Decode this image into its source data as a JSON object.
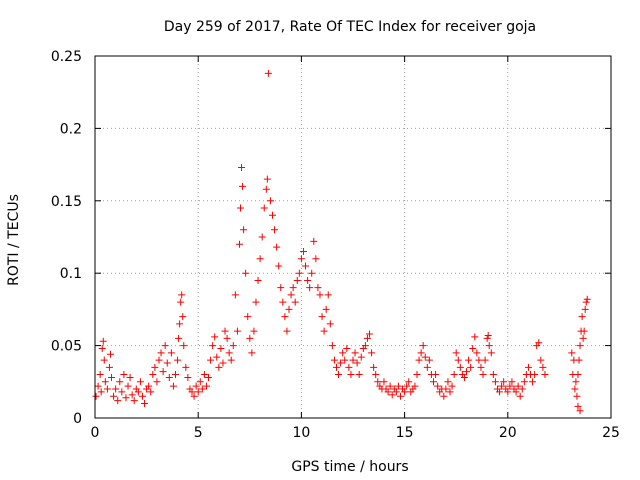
{
  "chart_data": {
    "type": "scatter",
    "title": "Day 259 of 2017, Rate Of TEC Index for receiver goja",
    "xlabel": "GPS time / hours",
    "ylabel": "ROTI / TECUs",
    "xlim": [
      0,
      25
    ],
    "ylim": [
      0,
      0.25
    ],
    "grid": true,
    "marker": "+",
    "color": "#ff0000",
    "x_ticks": [
      {
        "value": 0,
        "label": "0"
      },
      {
        "value": 5,
        "label": "5"
      },
      {
        "value": 10,
        "label": "10"
      },
      {
        "value": 15,
        "label": "15"
      },
      {
        "value": 20,
        "label": "20"
      },
      {
        "value": 25,
        "label": "25"
      }
    ],
    "y_ticks": [
      {
        "value": 0,
        "label": "0"
      },
      {
        "value": 0.05,
        "label": "0.05"
      },
      {
        "value": 0.1,
        "label": "0.1"
      },
      {
        "value": 0.15,
        "label": "0.15"
      },
      {
        "value": 0.2,
        "label": "0.2"
      },
      {
        "value": 0.25,
        "label": "0.25"
      }
    ],
    "series": [
      {
        "name": "ROTI",
        "points": [
          [
            0.05,
            0.015
          ],
          [
            0.15,
            0.022
          ],
          [
            0.25,
            0.03
          ],
          [
            0.3,
            0.018
          ],
          [
            0.35,
            0.048
          ],
          [
            0.4,
            0.053
          ],
          [
            0.45,
            0.04
          ],
          [
            0.5,
            0.025
          ],
          [
            0.6,
            0.02
          ],
          [
            0.7,
            0.035
          ],
          [
            0.75,
            0.044
          ],
          [
            0.8,
            0.028
          ],
          [
            0.9,
            0.015
          ],
          [
            1.0,
            0.02
          ],
          [
            1.1,
            0.012
          ],
          [
            1.2,
            0.025
          ],
          [
            1.3,
            0.018
          ],
          [
            1.4,
            0.03
          ],
          [
            1.5,
            0.014
          ],
          [
            1.6,
            0.022
          ],
          [
            1.7,
            0.028
          ],
          [
            1.8,
            0.016
          ],
          [
            1.9,
            0.012
          ],
          [
            2.0,
            0.02
          ],
          [
            2.1,
            0.018
          ],
          [
            2.2,
            0.025
          ],
          [
            2.3,
            0.015
          ],
          [
            2.4,
            0.01
          ],
          [
            2.5,
            0.02
          ],
          [
            2.6,
            0.022
          ],
          [
            2.7,
            0.018
          ],
          [
            2.8,
            0.03
          ],
          [
            2.9,
            0.035
          ],
          [
            3.0,
            0.025
          ],
          [
            3.1,
            0.04
          ],
          [
            3.2,
            0.045
          ],
          [
            3.3,
            0.032
          ],
          [
            3.4,
            0.05
          ],
          [
            3.5,
            0.038
          ],
          [
            3.6,
            0.028
          ],
          [
            3.7,
            0.045
          ],
          [
            3.8,
            0.022
          ],
          [
            3.9,
            0.03
          ],
          [
            4.0,
            0.04
          ],
          [
            4.05,
            0.055
          ],
          [
            4.1,
            0.065
          ],
          [
            4.15,
            0.08
          ],
          [
            4.2,
            0.085
          ],
          [
            4.25,
            0.07
          ],
          [
            4.3,
            0.05
          ],
          [
            4.4,
            0.035
          ],
          [
            4.5,
            0.028
          ],
          [
            4.6,
            0.02
          ],
          [
            4.7,
            0.018
          ],
          [
            4.8,
            0.015
          ],
          [
            4.9,
            0.022
          ],
          [
            5.0,
            0.018
          ],
          [
            5.1,
            0.025
          ],
          [
            5.2,
            0.02
          ],
          [
            5.3,
            0.03
          ],
          [
            5.4,
            0.022
          ],
          [
            5.5,
            0.028
          ],
          [
            5.6,
            0.04
          ],
          [
            5.7,
            0.05
          ],
          [
            5.8,
            0.056
          ],
          [
            5.9,
            0.042
          ],
          [
            6.0,
            0.035
          ],
          [
            6.1,
            0.048
          ],
          [
            6.2,
            0.038
          ],
          [
            6.3,
            0.06
          ],
          [
            6.4,
            0.055
          ],
          [
            6.5,
            0.045
          ],
          [
            6.6,
            0.04
          ],
          [
            6.7,
            0.05
          ],
          [
            6.8,
            0.085
          ],
          [
            6.9,
            0.06
          ],
          [
            7.0,
            0.12
          ],
          [
            7.05,
            0.145
          ],
          [
            7.1,
            0.173
          ],
          [
            7.15,
            0.16
          ],
          [
            7.2,
            0.13
          ],
          [
            7.3,
            0.1
          ],
          [
            7.4,
            0.07
          ],
          [
            7.5,
            0.055
          ],
          [
            7.6,
            0.045
          ],
          [
            7.7,
            0.06
          ],
          [
            7.8,
            0.08
          ],
          [
            7.9,
            0.095
          ],
          [
            8.0,
            0.11
          ],
          [
            8.1,
            0.125
          ],
          [
            8.2,
            0.145
          ],
          [
            8.3,
            0.158
          ],
          [
            8.35,
            0.165
          ],
          [
            8.4,
            0.238
          ],
          [
            8.5,
            0.15
          ],
          [
            8.6,
            0.14
          ],
          [
            8.7,
            0.13
          ],
          [
            8.8,
            0.118
          ],
          [
            8.9,
            0.105
          ],
          [
            9.0,
            0.09
          ],
          [
            9.1,
            0.08
          ],
          [
            9.2,
            0.07
          ],
          [
            9.3,
            0.06
          ],
          [
            9.4,
            0.075
          ],
          [
            9.5,
            0.085
          ],
          [
            9.6,
            0.09
          ],
          [
            9.7,
            0.08
          ],
          [
            9.8,
            0.095
          ],
          [
            9.9,
            0.1
          ],
          [
            10.0,
            0.11
          ],
          [
            10.1,
            0.115
          ],
          [
            10.2,
            0.105
          ],
          [
            10.3,
            0.095
          ],
          [
            10.4,
            0.09
          ],
          [
            10.5,
            0.1
          ],
          [
            10.6,
            0.122
          ],
          [
            10.7,
            0.11
          ],
          [
            10.8,
            0.09
          ],
          [
            10.9,
            0.085
          ],
          [
            11.0,
            0.07
          ],
          [
            11.1,
            0.06
          ],
          [
            11.2,
            0.075
          ],
          [
            11.3,
            0.085
          ],
          [
            11.4,
            0.065
          ],
          [
            11.5,
            0.05
          ],
          [
            11.6,
            0.04
          ],
          [
            11.7,
            0.035
          ],
          [
            11.8,
            0.03
          ],
          [
            11.9,
            0.038
          ],
          [
            12.0,
            0.045
          ],
          [
            12.1,
            0.04
          ],
          [
            12.2,
            0.048
          ],
          [
            12.3,
            0.035
          ],
          [
            12.4,
            0.03
          ],
          [
            12.5,
            0.04
          ],
          [
            12.6,
            0.045
          ],
          [
            12.7,
            0.038
          ],
          [
            12.8,
            0.03
          ],
          [
            12.9,
            0.042
          ],
          [
            13.0,
            0.048
          ],
          [
            13.1,
            0.05
          ],
          [
            13.2,
            0.055
          ],
          [
            13.3,
            0.058
          ],
          [
            13.4,
            0.045
          ],
          [
            13.5,
            0.035
          ],
          [
            13.6,
            0.03
          ],
          [
            13.7,
            0.025
          ],
          [
            13.8,
            0.022
          ],
          [
            13.9,
            0.02
          ],
          [
            14.0,
            0.025
          ],
          [
            14.1,
            0.02
          ],
          [
            14.2,
            0.018
          ],
          [
            14.3,
            0.022
          ],
          [
            14.4,
            0.016
          ],
          [
            14.5,
            0.02
          ],
          [
            14.6,
            0.018
          ],
          [
            14.7,
            0.022
          ],
          [
            14.8,
            0.015
          ],
          [
            14.9,
            0.02
          ],
          [
            15.0,
            0.018
          ],
          [
            15.1,
            0.022
          ],
          [
            15.2,
            0.025
          ],
          [
            15.3,
            0.018
          ],
          [
            15.4,
            0.02
          ],
          [
            15.5,
            0.022
          ],
          [
            15.6,
            0.03
          ],
          [
            15.7,
            0.04
          ],
          [
            15.8,
            0.045
          ],
          [
            15.9,
            0.05
          ],
          [
            16.0,
            0.042
          ],
          [
            16.1,
            0.035
          ],
          [
            16.2,
            0.04
          ],
          [
            16.3,
            0.03
          ],
          [
            16.4,
            0.025
          ],
          [
            16.5,
            0.03
          ],
          [
            16.6,
            0.022
          ],
          [
            16.7,
            0.018
          ],
          [
            16.8,
            0.02
          ],
          [
            16.9,
            0.015
          ],
          [
            17.0,
            0.02
          ],
          [
            17.1,
            0.025
          ],
          [
            17.2,
            0.018
          ],
          [
            17.3,
            0.022
          ],
          [
            17.4,
            0.03
          ],
          [
            17.5,
            0.045
          ],
          [
            17.6,
            0.04
          ],
          [
            17.7,
            0.035
          ],
          [
            17.8,
            0.03
          ],
          [
            17.9,
            0.028
          ],
          [
            18.0,
            0.032
          ],
          [
            18.1,
            0.04
          ],
          [
            18.2,
            0.035
          ],
          [
            18.3,
            0.048
          ],
          [
            18.4,
            0.056
          ],
          [
            18.5,
            0.045
          ],
          [
            18.6,
            0.04
          ],
          [
            18.7,
            0.035
          ],
          [
            18.8,
            0.03
          ],
          [
            18.9,
            0.04
          ],
          [
            19.0,
            0.055
          ],
          [
            19.05,
            0.057
          ],
          [
            19.1,
            0.05
          ],
          [
            19.2,
            0.045
          ],
          [
            19.3,
            0.03
          ],
          [
            19.4,
            0.025
          ],
          [
            19.5,
            0.02
          ],
          [
            19.6,
            0.018
          ],
          [
            19.7,
            0.022
          ],
          [
            19.8,
            0.025
          ],
          [
            19.9,
            0.02
          ],
          [
            20.0,
            0.018
          ],
          [
            20.1,
            0.022
          ],
          [
            20.2,
            0.025
          ],
          [
            20.3,
            0.02
          ],
          [
            20.4,
            0.018
          ],
          [
            20.5,
            0.022
          ],
          [
            20.6,
            0.015
          ],
          [
            20.7,
            0.02
          ],
          [
            20.8,
            0.025
          ],
          [
            20.9,
            0.03
          ],
          [
            21.0,
            0.035
          ],
          [
            21.1,
            0.03
          ],
          [
            21.2,
            0.025
          ],
          [
            21.3,
            0.03
          ],
          [
            21.4,
            0.05
          ],
          [
            21.5,
            0.052
          ],
          [
            21.6,
            0.04
          ],
          [
            21.7,
            0.035
          ],
          [
            21.8,
            0.03
          ],
          [
            23.1,
            0.045
          ],
          [
            23.15,
            0.03
          ],
          [
            23.2,
            0.04
          ],
          [
            23.25,
            0.02
          ],
          [
            23.3,
            0.025
          ],
          [
            23.35,
            0.015
          ],
          [
            23.4,
            0.03
          ],
          [
            23.45,
            0.04
          ],
          [
            23.5,
            0.05
          ],
          [
            23.55,
            0.06
          ],
          [
            23.6,
            0.07
          ],
          [
            23.65,
            0.055
          ],
          [
            23.7,
            0.06
          ],
          [
            23.75,
            0.075
          ],
          [
            23.8,
            0.08
          ],
          [
            23.85,
            0.082
          ],
          [
            23.4,
            0.008
          ],
          [
            23.5,
            0.005
          ]
        ]
      }
    ]
  }
}
